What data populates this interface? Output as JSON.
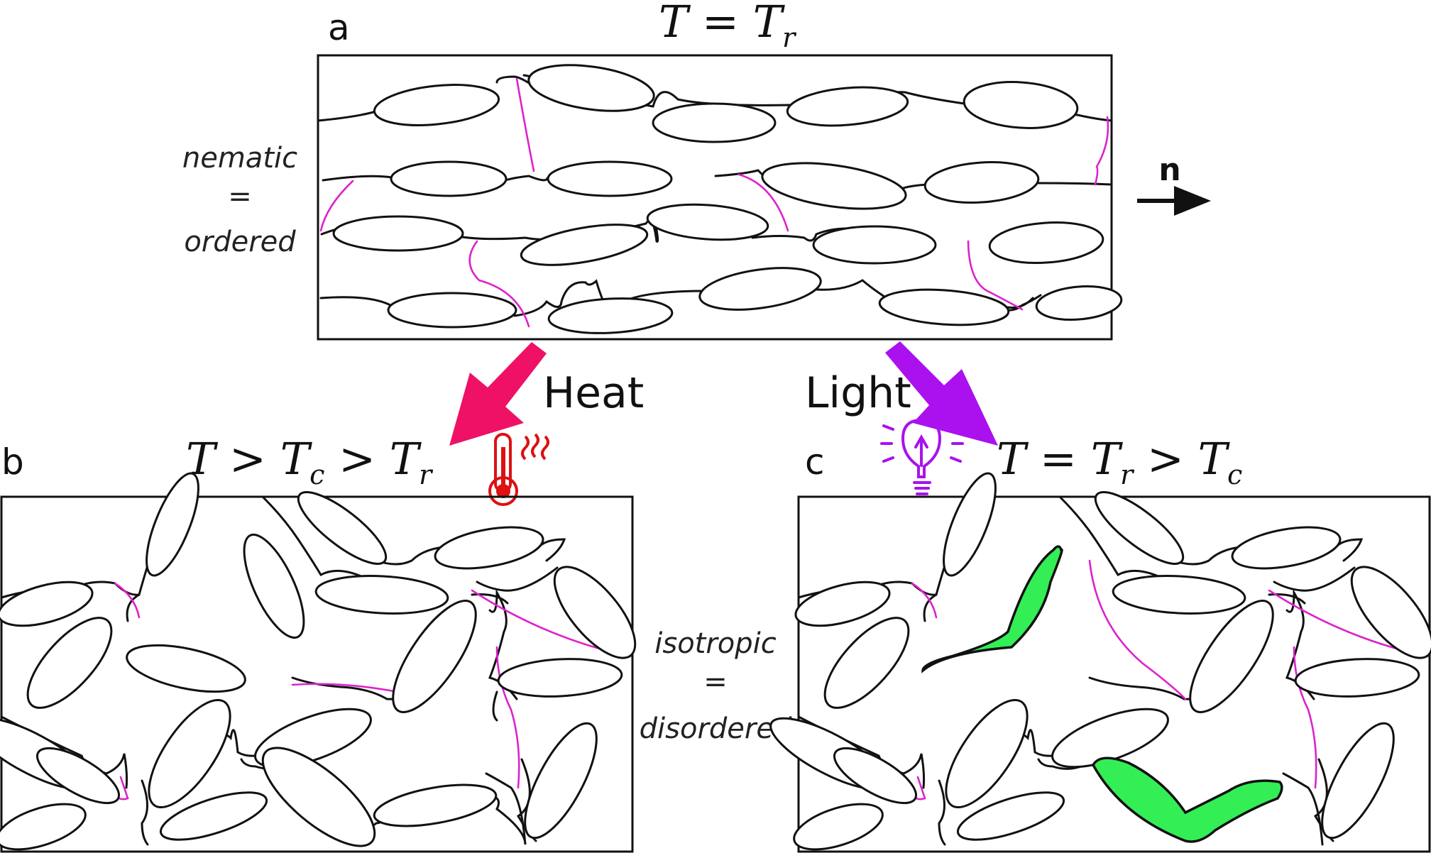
{
  "panel_a": {
    "letter": "a",
    "condition_main": "T = T",
    "condition_sub": "r",
    "side_label": [
      "nematic",
      "=",
      "ordered"
    ],
    "director_label": "n"
  },
  "panel_b": {
    "letter": "b",
    "condition_parts": [
      "T > T",
      "c",
      " > T",
      "r"
    ]
  },
  "panel_c": {
    "letter": "c",
    "condition_parts": [
      "T = T",
      "r",
      " > T",
      "c"
    ]
  },
  "middle_label": [
    "isotropic",
    "=",
    "disordered"
  ],
  "arrows": {
    "heat": {
      "label": "Heat",
      "color": "#ee1166"
    },
    "light": {
      "label": "Light",
      "color": "#aa11ee"
    }
  },
  "icons": {
    "heat": "thermometer-icon",
    "light": "light-bulb-icon"
  },
  "colors": {
    "crosslink": "#dd22cc",
    "active_molecule": "#33ee55",
    "thermometer": "#dd1111",
    "bulb": "#aa11ee"
  }
}
